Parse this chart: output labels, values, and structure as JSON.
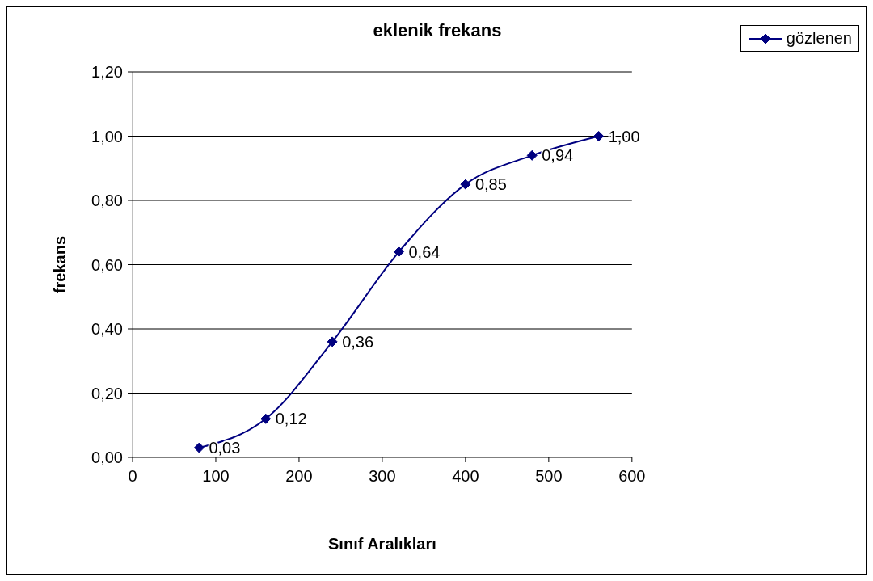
{
  "chart_data": {
    "type": "line",
    "title": "eklenik frekans",
    "xlabel": "Sınıf Aralıkları",
    "ylabel": "frekans",
    "x": [
      80,
      160,
      240,
      320,
      400,
      480,
      560
    ],
    "series": [
      {
        "name": "gözlenen",
        "color": "#000080",
        "values": [
          0.03,
          0.12,
          0.36,
          0.64,
          0.85,
          0.94,
          1.0
        ],
        "value_labels": [
          "0,03",
          "0,12",
          "0,36",
          "0,64",
          "0,85",
          "0,94",
          "1,00"
        ]
      }
    ],
    "xlim": [
      0,
      600
    ],
    "xticks": [
      0,
      100,
      200,
      300,
      400,
      500,
      600
    ],
    "ylim": [
      0,
      1.2
    ],
    "yticks": [
      {
        "value": 0,
        "label": "0,00"
      },
      {
        "value": 0.2,
        "label": "0,20"
      },
      {
        "value": 0.4,
        "label": "0,40"
      },
      {
        "value": 0.6,
        "label": "0,60"
      },
      {
        "value": 0.8,
        "label": "0,80"
      },
      {
        "value": 1.0,
        "label": "1,00"
      },
      {
        "value": 1.2,
        "label": "1,20"
      }
    ],
    "grid": "y",
    "legend": "top right",
    "marker": "diamond",
    "line_style": "solid"
  }
}
